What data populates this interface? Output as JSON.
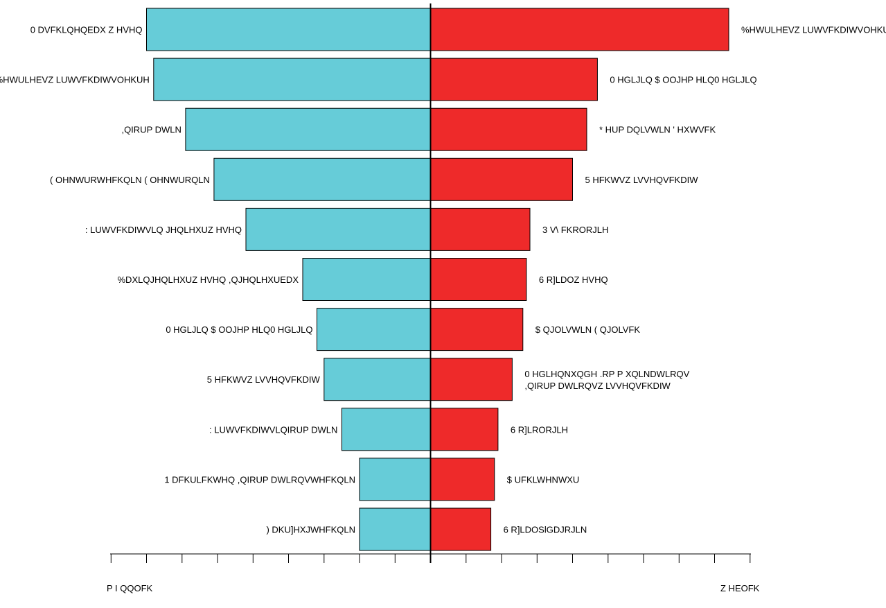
{
  "chart_data": {
    "type": "bar",
    "orientation": "horizontal-butterfly",
    "title": "",
    "xlabel": "",
    "ylabel": "",
    "xlim": [
      -45,
      45
    ],
    "grid": false,
    "legend": "none",
    "axis_labels": {
      "left": "P I QQOFK",
      "right": "Z HEOFK"
    },
    "series": [
      {
        "color": "#66CCD8",
        "categories": [
          "0 DVFKLQHQEDX  Z HVHQ",
          "%HWULHEVZ LUWVFKDIWVOHKUH",
          ",QIRUP DWLN",
          "( OHNWURWHFKQLN ( OHNWURQLN",
          ":  LUWVFKDIWVLQ JHQLHXUZ HVHQ",
          "%DXLQJHQLHXUZ HVHQ ,QJHQLHXUEDX",
          "0 HGLJLQ  $ OOJHP HLQ0 HGLJLQ",
          "5 HFKWVZ LVVHQVFKDIW",
          ":  LUWVFKDIWVLQIRUP DWLN",
          "1 DFKULFKWHQ  ,QIRUP DWLRQVWHFKQLN",
          ") DKU]HXJWHFKQLN"
        ],
        "values": [
          40,
          39,
          34.5,
          30.5,
          26,
          18,
          16,
          15,
          12.5,
          10,
          10
        ]
      },
      {
        "color": "#EE2A2A",
        "categories": [
          "%HWULHEVZ LUWVFKDIWVOHKUH",
          "0 HGLJLQ  $ OOJHP HLQ0 HGLJLQ",
          "* HUP DQLVWLN ' HXWVFK",
          "5 HFKWVZ LVVHQVFKDIW",
          "3 V\\ FKRORJLH",
          "6 R]LDOZ HVHQ",
          "$ QJOLVWLN ( QJOLVFK",
          "0 HGLHQNXQGH .RP P XQLNDWLRQV ,QIRUP DWLRQVZ LVVHQVFKDIW",
          "6 R]LRORJLH",
          "$ UFKLWHNWXU",
          "6 R]LDOSlGDJRJLN"
        ],
        "values": [
          42,
          23.5,
          22,
          20,
          14,
          13.5,
          13,
          11.5,
          9.5,
          9,
          8.5
        ]
      }
    ]
  }
}
